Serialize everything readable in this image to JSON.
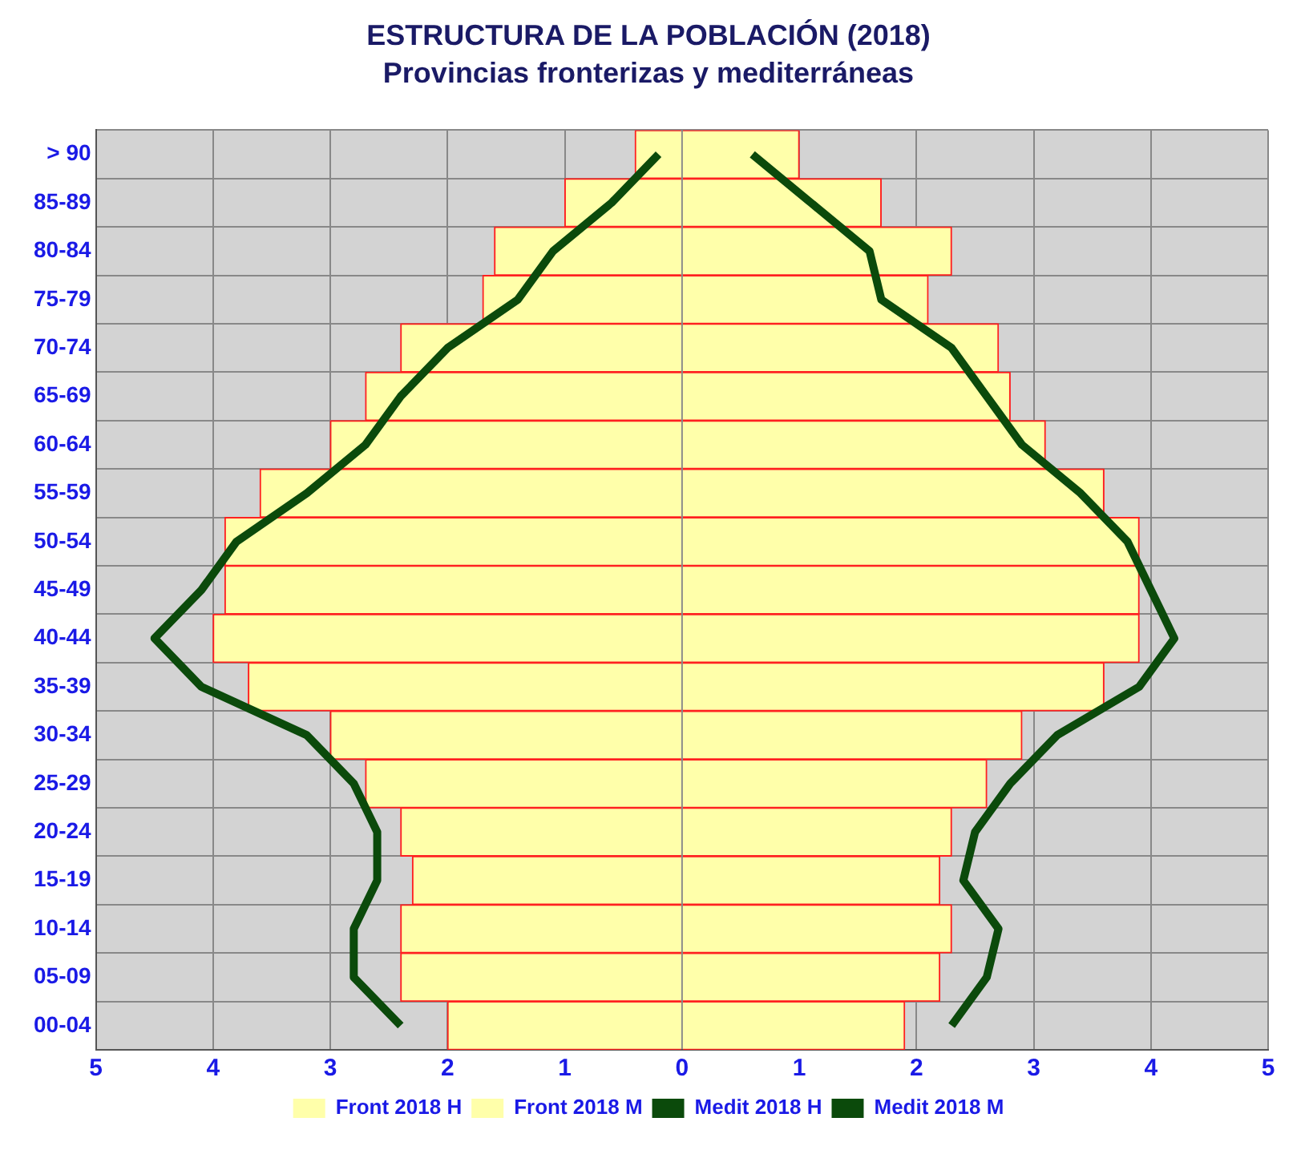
{
  "chart_data": {
    "type": "bar",
    "orientation": "horizontal",
    "title": "ESTRUCTURA DE LA POBLACIÓN (2018)",
    "subtitle": "Provincias fronterizas y mediterráneas",
    "categories": [
      "> 90",
      "85-89",
      "80-84",
      "75-79",
      "70-74",
      "65-69",
      "60-64",
      "55-59",
      "50-54",
      "45-49",
      "40-44",
      "35-39",
      "30-34",
      "25-29",
      "20-24",
      "15-19",
      "10-14",
      "05-09",
      "00-04"
    ],
    "series": [
      {
        "name": "Front 2018 H",
        "type": "bar",
        "color": "#ffffaa",
        "values": [
          -0.4,
          -1.0,
          -1.6,
          -1.7,
          -2.4,
          -2.7,
          -3.0,
          -3.6,
          -3.9,
          -3.9,
          -4.0,
          -3.7,
          -3.0,
          -2.7,
          -2.4,
          -2.3,
          -2.4,
          -2.4,
          -2.0
        ]
      },
      {
        "name": "Front 2018 M",
        "type": "bar",
        "color": "#ffffaa",
        "values": [
          1.0,
          1.7,
          2.3,
          2.1,
          2.7,
          2.8,
          3.1,
          3.6,
          3.9,
          3.9,
          3.9,
          3.6,
          2.9,
          2.6,
          2.3,
          2.2,
          2.3,
          2.2,
          1.9
        ]
      },
      {
        "name": "Medit 2018 H",
        "type": "line",
        "color": "#0b4a0b",
        "values": [
          -0.2,
          -0.6,
          -1.1,
          -1.4,
          -2.0,
          -2.4,
          -2.7,
          -3.2,
          -3.8,
          -4.1,
          -4.5,
          -4.1,
          -3.2,
          -2.8,
          -2.6,
          -2.6,
          -2.8,
          -2.8,
          -2.4
        ]
      },
      {
        "name": "Medit 2018 M",
        "type": "line",
        "color": "#0b4a0b",
        "values": [
          0.6,
          1.1,
          1.6,
          1.7,
          2.3,
          2.6,
          2.9,
          3.4,
          3.8,
          4.0,
          4.2,
          3.9,
          3.2,
          2.8,
          2.5,
          2.4,
          2.7,
          2.6,
          2.3
        ]
      }
    ],
    "xlim": [
      -5,
      5
    ],
    "xticks": [
      {
        "value": -5,
        "label": "5"
      },
      {
        "value": -4,
        "label": "4"
      },
      {
        "value": -3,
        "label": "3"
      },
      {
        "value": -2,
        "label": "2"
      },
      {
        "value": -1,
        "label": "1"
      },
      0,
      1,
      2,
      3,
      4,
      5
    ],
    "stacked": true,
    "grid": true,
    "legend": "bottom"
  }
}
